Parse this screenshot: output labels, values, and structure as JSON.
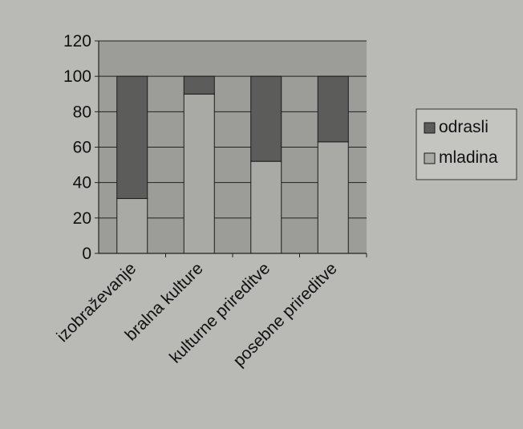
{
  "chart_data": {
    "type": "bar",
    "stacked": true,
    "categories": [
      "izobraževanje",
      "bralna kulture",
      "kulturne prireditve",
      "posebne prireditve"
    ],
    "series": [
      {
        "name": "mladina",
        "values": [
          31,
          90,
          52,
          63
        ]
      },
      {
        "name": "odrasli",
        "values": [
          69,
          10,
          48,
          37
        ]
      }
    ],
    "ylim": [
      0,
      120
    ],
    "yticks": [
      0,
      20,
      40,
      60,
      80,
      100,
      120
    ],
    "grid": true,
    "legend_position": "right",
    "colors": {
      "mladina": "#a9a9a6",
      "odrasli": "#5c5c5a",
      "plot_background": "#9c9c99",
      "page_background": "#b9b9b6",
      "text": "#111111"
    }
  }
}
